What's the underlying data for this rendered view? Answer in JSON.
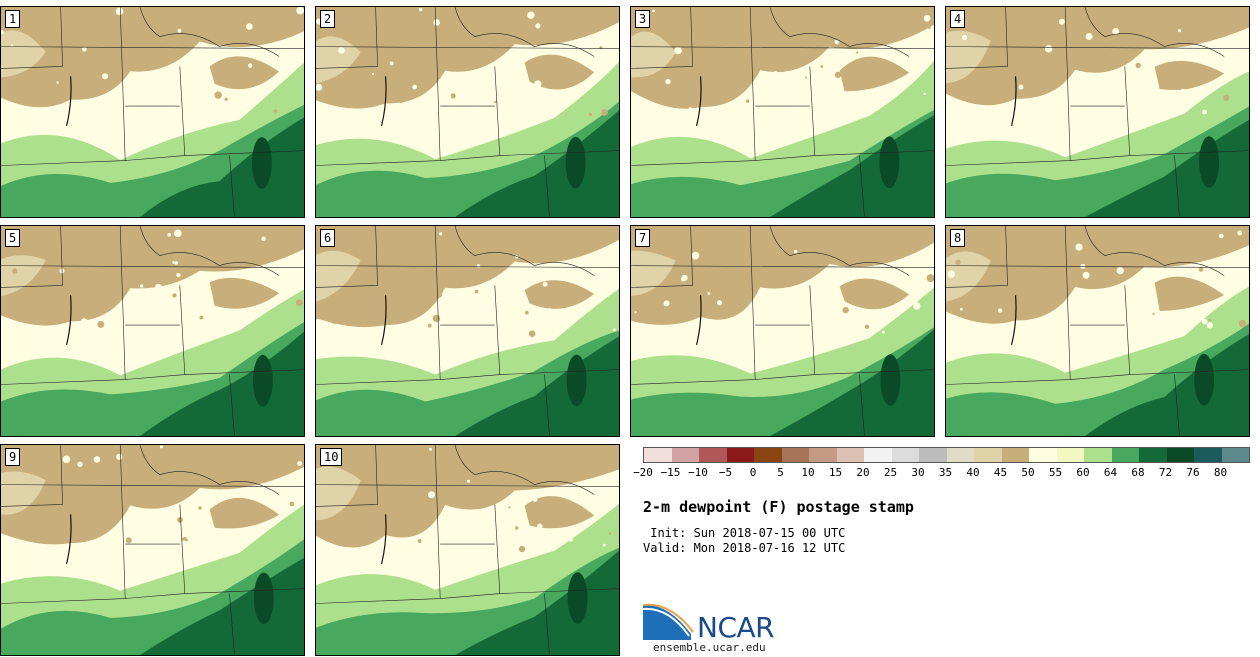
{
  "stamps": [
    {
      "label": "1"
    },
    {
      "label": "2"
    },
    {
      "label": "3"
    },
    {
      "label": "4"
    },
    {
      "label": "5"
    },
    {
      "label": "6"
    },
    {
      "label": "7"
    },
    {
      "label": "8"
    },
    {
      "label": "9"
    },
    {
      "label": "10"
    }
  ],
  "colorbar": {
    "colors": [
      "#f3dede",
      "#d3a3a3",
      "#b05858",
      "#8c1a1a",
      "#8a4513",
      "#a87358",
      "#c49a84",
      "#dcc0b2",
      "#f2f2f2",
      "#dcdcdc",
      "#bcbcbc",
      "#e0dcc8",
      "#e1d3a8",
      "#c8ae7a",
      "#fffde2",
      "#f3f7c0",
      "#ade08d",
      "#48a85e",
      "#146a36",
      "#0b4a26",
      "#1d5a5e",
      "#5d8a8e"
    ],
    "tick_labels": [
      "−20",
      "−15",
      "−10",
      "−5",
      "0",
      "5",
      "10",
      "15",
      "20",
      "25",
      "30",
      "35",
      "40",
      "45",
      "50",
      "55",
      "60",
      "64",
      "68",
      "72",
      "76",
      "80"
    ]
  },
  "title": "2-m dewpoint (F) postage stamp",
  "init_text": " Init: Sun 2018-07-15 00 UTC",
  "valid_text": "Valid: Mon 2018-07-16 12 UTC",
  "logo_text": "NCAR",
  "site_text": "ensemble.ucar.edu"
}
